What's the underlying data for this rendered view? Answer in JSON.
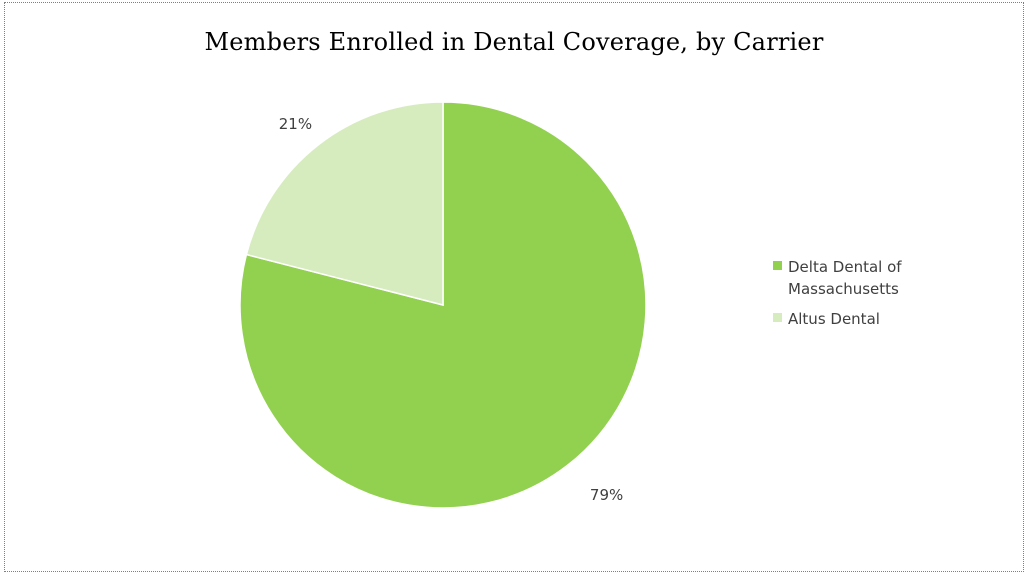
{
  "chart_data": {
    "type": "pie",
    "title": "Members Enrolled in Dental Coverage, by Carrier",
    "slices": [
      {
        "name": "Delta Dental of Massachusetts",
        "value": 79,
        "label": "79%",
        "color": "#92d050"
      },
      {
        "name": "Altus Dental",
        "value": 21,
        "label": "21%",
        "color": "#d6ecbf"
      }
    ],
    "start_angle_deg": 0,
    "direction": "clockwise",
    "legend_position": "right"
  }
}
